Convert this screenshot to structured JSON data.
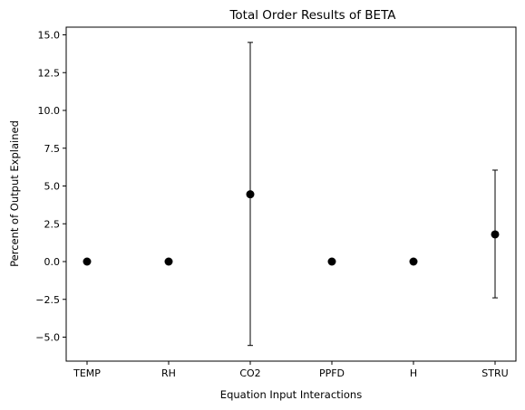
{
  "chart_data": {
    "type": "scatter",
    "title": "Total Order Results of BETA",
    "xlabel": "Equation Input Interactions",
    "ylabel": "Percent of Output Explained",
    "categories": [
      "TEMP",
      "RH",
      "CO2",
      "PPFD",
      "H",
      "STRU"
    ],
    "series": [
      {
        "values": [
          0.0,
          0.0,
          4.45,
          0.0,
          0.0,
          1.8
        ],
        "err_low": [
          0.0,
          0.0,
          10.0,
          0.0,
          0.0,
          4.2
        ],
        "err_high": [
          0.0,
          0.0,
          10.05,
          0.0,
          0.0,
          4.25
        ]
      }
    ],
    "ylim": [
      -6.5,
      15.5
    ],
    "yticks": [
      -5.0,
      -2.5,
      0.0,
      2.5,
      5.0,
      7.5,
      10.0,
      12.5,
      15.0
    ],
    "ytick_labels": [
      "−5.0",
      "−2.5",
      "0.0",
      "2.5",
      "5.0",
      "7.5",
      "10.0",
      "12.5",
      "15.0"
    ],
    "grid": false,
    "colors": {
      "marker": "#000000",
      "errorbar": "#000000",
      "axes": "#000000"
    }
  }
}
